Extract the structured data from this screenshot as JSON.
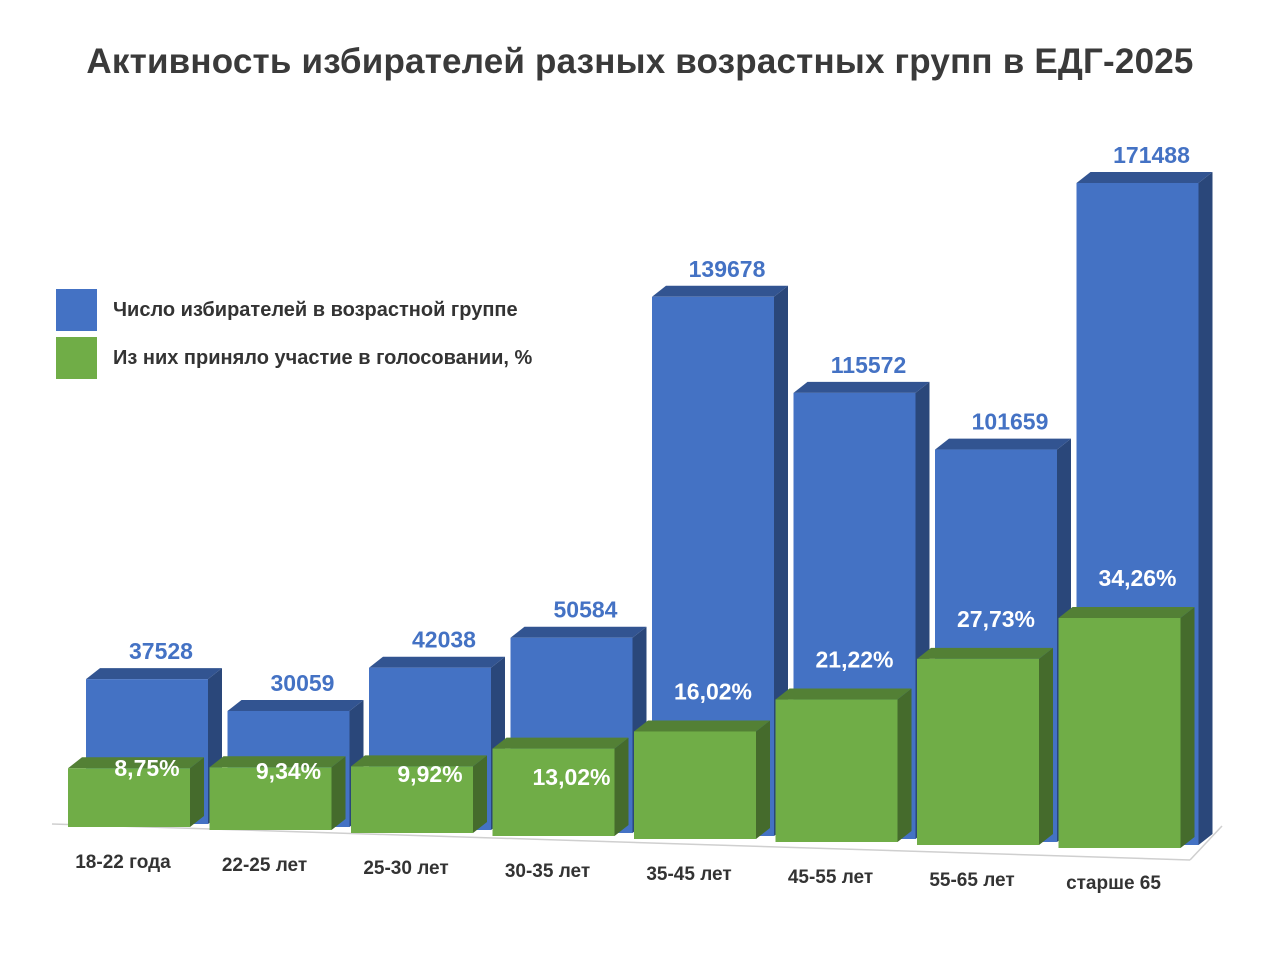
{
  "chart_data": {
    "type": "bar",
    "title": "Активность избирателей разных возрастных групп в ЕДГ-2025",
    "categories": [
      "18-22 года",
      "22-25 лет",
      "25-30 лет",
      "30-35 лет",
      "35-45 лет",
      "45-55 лет",
      "55-65 лет",
      "старше 65"
    ],
    "series": [
      {
        "name": "Число избирателей в возрастной группе",
        "values": [
          37528,
          30059,
          42038,
          50584,
          139678,
          115572,
          101659,
          171488
        ],
        "labels": [
          "37528",
          "30059",
          "42038",
          "50584",
          "139678",
          "115572",
          "101659",
          "171488"
        ],
        "color": "#4472C4"
      },
      {
        "name": "Из них приняло участие в голосовании, %",
        "values": [
          8.75,
          9.34,
          9.92,
          13.02,
          16.02,
          21.22,
          27.73,
          34.26
        ],
        "labels": [
          "8,75%",
          "9,34%",
          "9,92%",
          "13,02%",
          "16,02%",
          "21,22%",
          "27,73%",
          "34,26%"
        ],
        "color": "#70AD47"
      }
    ],
    "legend_position": "left",
    "grid": false,
    "style": "3d"
  }
}
